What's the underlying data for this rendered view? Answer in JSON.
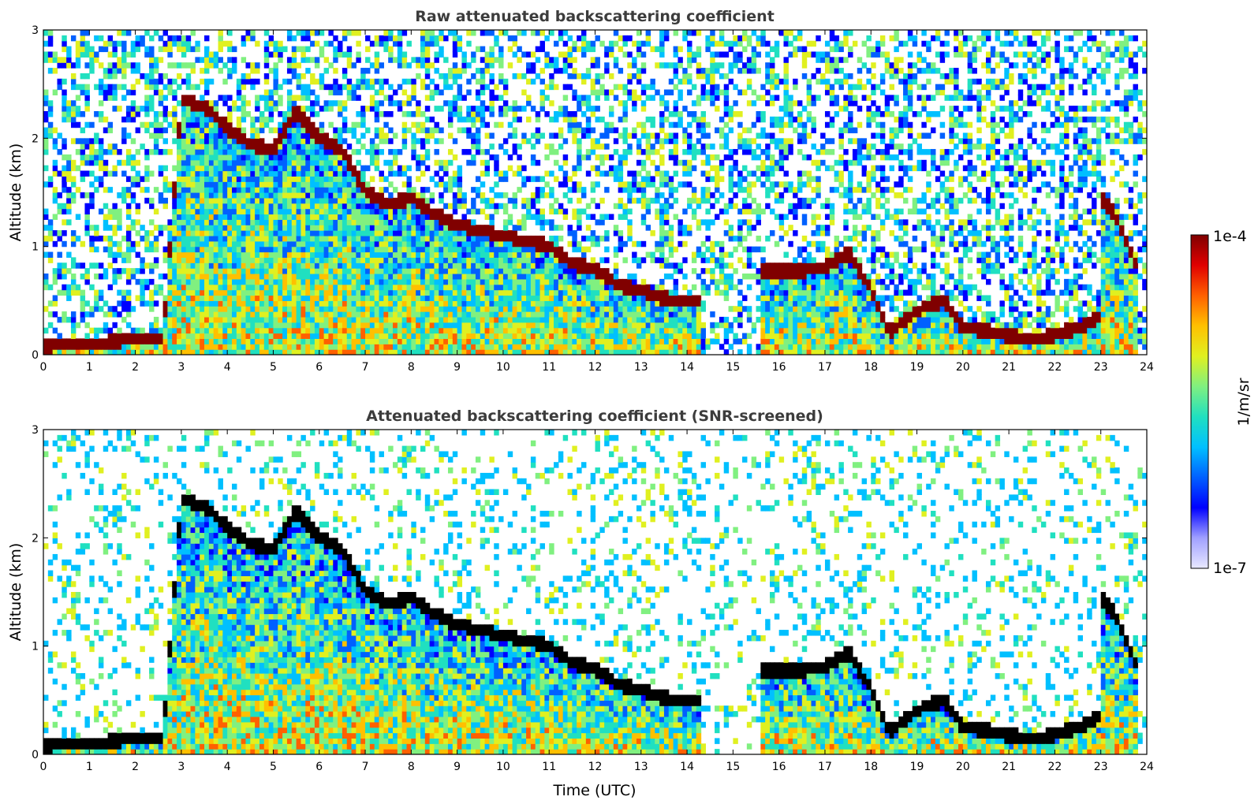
{
  "chart_data": [
    {
      "type": "heatmap",
      "title": "Raw attenuated backscattering coefficient",
      "xlabel": "",
      "ylabel": "Altitude (km)",
      "xlim": [
        0,
        24
      ],
      "ylim": [
        0,
        3
      ],
      "x_ticks": [
        "0",
        "1",
        "2",
        "3",
        "4",
        "5",
        "6",
        "7",
        "8",
        "9",
        "10",
        "11",
        "12",
        "13",
        "14",
        "15",
        "16",
        "17",
        "18",
        "19",
        "20",
        "21",
        "22",
        "23",
        "24"
      ],
      "y_ticks": [
        "0",
        "1",
        "2",
        "3"
      ],
      "cloud_layer": {
        "time_utc": [
          0,
          1,
          1.5,
          1.9,
          2.6,
          3.0,
          3.5,
          4.0,
          4.5,
          5.0,
          5.5,
          6.0,
          6.5,
          7.0,
          7.5,
          8.0,
          8.5,
          9.0,
          9.5,
          10.0,
          10.5,
          11.0,
          11.5,
          12.0,
          12.5,
          13.0,
          13.5,
          14.0,
          14.3
        ],
        "altitude_km": [
          0.08,
          0.1,
          0.12,
          0.15,
          0.15,
          2.35,
          2.3,
          2.1,
          1.95,
          1.9,
          2.25,
          2.0,
          1.9,
          1.5,
          1.4,
          1.45,
          1.3,
          1.2,
          1.15,
          1.1,
          1.05,
          1.0,
          0.85,
          0.8,
          0.65,
          0.6,
          0.52,
          0.5,
          0.5
        ]
      },
      "cloud_layer_2": {
        "time_utc": [
          15.6,
          16.5,
          17.0,
          17.5,
          18.0,
          18.4,
          18.8,
          19.2,
          19.6,
          20.0,
          20.5,
          21.0,
          21.5,
          22.0,
          22.5,
          23.0
        ],
        "altitude_km": [
          0.78,
          0.78,
          0.8,
          0.95,
          0.6,
          0.2,
          0.35,
          0.45,
          0.5,
          0.25,
          0.22,
          0.18,
          0.15,
          0.18,
          0.25,
          0.35
        ]
      },
      "cloud_layer_3": {
        "time_utc": [
          23.0,
          23.3,
          23.6,
          23.8
        ],
        "altitude_km": [
          1.45,
          1.3,
          1.0,
          0.8
        ]
      }
    },
    {
      "type": "heatmap",
      "title": "Attenuated backscattering coefficient (SNR-screened)",
      "xlabel": "Time (UTC)",
      "ylabel": "Altitude (km)",
      "xlim": [
        0,
        24
      ],
      "ylim": [
        0,
        3
      ],
      "x_ticks": [
        "0",
        "1",
        "2",
        "3",
        "4",
        "5",
        "6",
        "7",
        "8",
        "9",
        "10",
        "11",
        "12",
        "13",
        "14",
        "15",
        "16",
        "17",
        "18",
        "19",
        "20",
        "21",
        "22",
        "23",
        "24"
      ],
      "y_ticks": [
        "0",
        "1",
        "2",
        "3"
      ]
    }
  ],
  "colorbar": {
    "label": "1/m/sr",
    "max_label": "1e-4",
    "min_label": "1e-7",
    "scale": "log",
    "range": [
      1e-07,
      0.0001
    ],
    "colormap": [
      "#e8e8ff",
      "#a0a0ff",
      "#0000ff",
      "#0060ff",
      "#00c0ff",
      "#20e0c0",
      "#80f080",
      "#e0f020",
      "#ffc000",
      "#ff6000",
      "#e00000",
      "#800000"
    ]
  },
  "colors": {
    "saturated_layer": "#800000",
    "screened_layer": "#000000",
    "background": "#ffffff"
  }
}
